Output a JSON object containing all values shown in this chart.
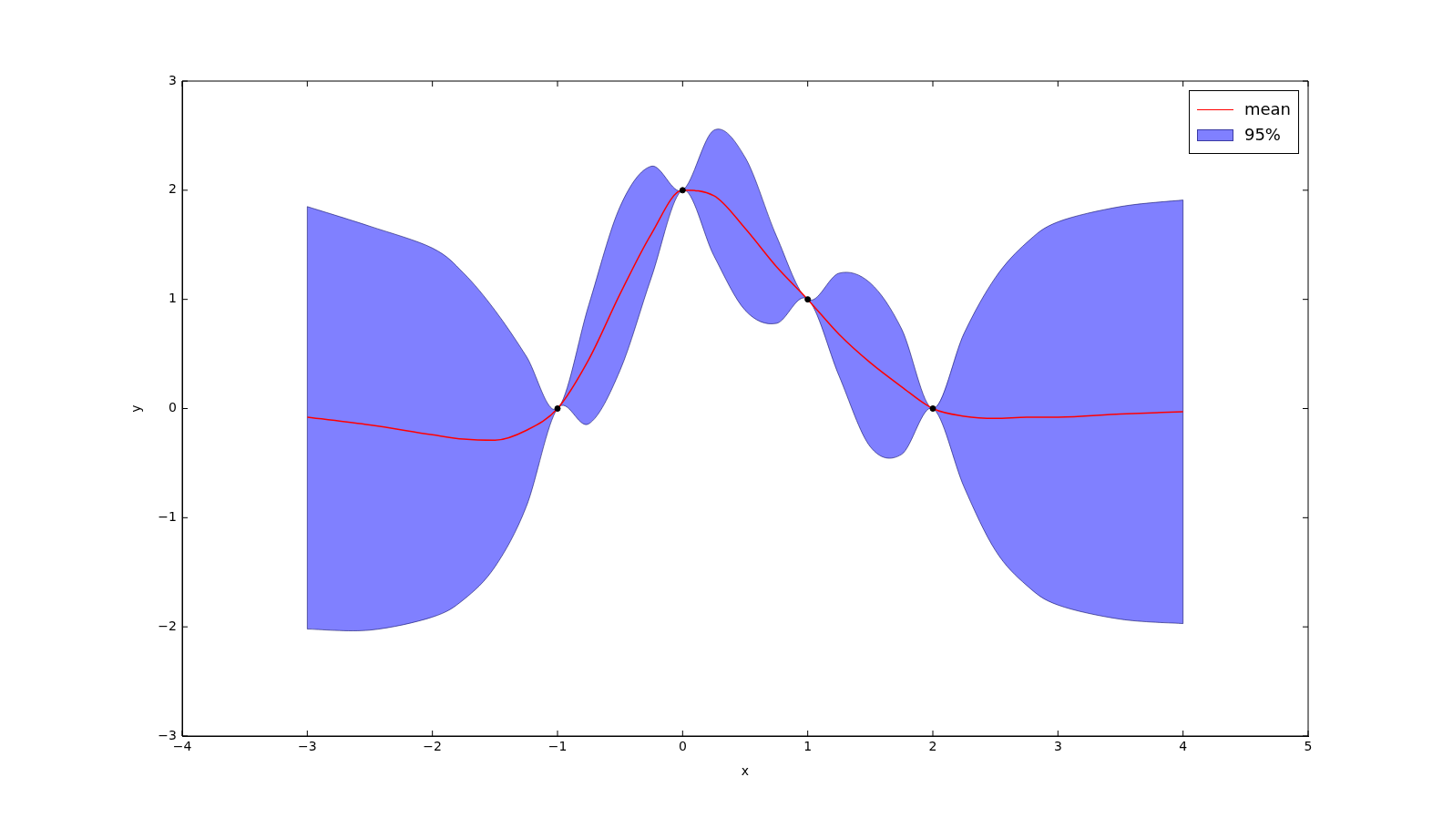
{
  "chart_data": {
    "type": "line",
    "xlabel": "x",
    "ylabel": "y",
    "xlim": [
      -4,
      5
    ],
    "xticks": [
      -4,
      -3,
      -2,
      -1,
      0,
      1,
      2,
      3,
      4,
      5
    ],
    "ylim": [
      -3,
      3
    ],
    "yticks": [
      -3,
      -2,
      -1,
      0,
      1,
      2,
      3
    ],
    "grid": false,
    "legend": "top right",
    "annotations": [
      "95%"
    ],
    "x": [
      -3,
      -2.5,
      -2,
      -1.75,
      -1.5,
      -1.25,
      -1,
      -0.75,
      -0.5,
      -0.25,
      0,
      0.25,
      0.5,
      0.75,
      1,
      1.25,
      1.5,
      1.75,
      2,
      2.25,
      2.5,
      2.75,
      3,
      3.5,
      4
    ],
    "series": [
      {
        "name": "mean",
        "color": "#ff0000",
        "marker": "none",
        "values": [
          -0.08,
          -0.15,
          -0.24,
          -0.28,
          -0.29,
          -0.2,
          0,
          0.45,
          1.05,
          1.6,
          2.0,
          1.95,
          1.65,
          1.3,
          1.0,
          0.68,
          0.42,
          0.2,
          0,
          -0.07,
          -0.09,
          -0.08,
          -0.08,
          -0.05,
          -0.03
        ],
        "lower": [
          -2.02,
          -2.03,
          -1.91,
          -1.75,
          -1.45,
          -0.9,
          0,
          -0.14,
          0.35,
          1.2,
          2.0,
          1.4,
          0.9,
          0.78,
          1.0,
          0.3,
          -0.35,
          -0.42,
          0,
          -0.72,
          -1.3,
          -1.62,
          -1.8,
          -1.93,
          -1.97
        ],
        "upper": [
          1.85,
          1.67,
          1.47,
          1.24,
          0.9,
          0.48,
          0,
          0.95,
          1.85,
          2.22,
          2.0,
          2.55,
          2.3,
          1.58,
          1.0,
          1.24,
          1.15,
          0.73,
          0,
          0.69,
          1.2,
          1.52,
          1.71,
          1.85,
          1.91
        ]
      },
      {
        "type": "scatter",
        "color": "#000000",
        "marker": "circle",
        "x": [
          -1,
          0,
          1,
          2
        ],
        "values": [
          0,
          2,
          1,
          0
        ]
      }
    ]
  }
}
